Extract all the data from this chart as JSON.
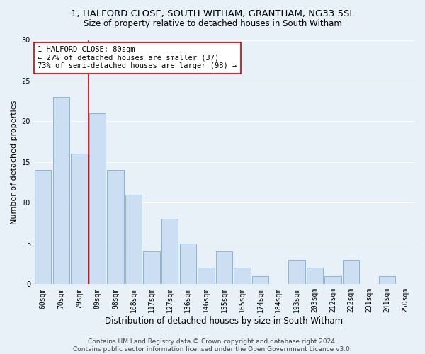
{
  "title": "1, HALFORD CLOSE, SOUTH WITHAM, GRANTHAM, NG33 5SL",
  "subtitle": "Size of property relative to detached houses in South Witham",
  "xlabel": "Distribution of detached houses by size in South Witham",
  "ylabel": "Number of detached properties",
  "footer_line1": "Contains HM Land Registry data © Crown copyright and database right 2024.",
  "footer_line2": "Contains public sector information licensed under the Open Government Licence v3.0.",
  "categories": [
    "60sqm",
    "70sqm",
    "79sqm",
    "89sqm",
    "98sqm",
    "108sqm",
    "117sqm",
    "127sqm",
    "136sqm",
    "146sqm",
    "155sqm",
    "165sqm",
    "174sqm",
    "184sqm",
    "193sqm",
    "203sqm",
    "212sqm",
    "222sqm",
    "231sqm",
    "241sqm",
    "250sqm"
  ],
  "values": [
    14,
    23,
    16,
    21,
    14,
    11,
    4,
    8,
    5,
    2,
    4,
    2,
    1,
    0,
    3,
    2,
    1,
    3,
    0,
    1,
    0
  ],
  "bar_color": "#ccdff2",
  "bar_edge_color": "#8ab4d8",
  "vline_x_index": 2,
  "vline_color": "#cc0000",
  "annotation_text": "1 HALFORD CLOSE: 80sqm\n← 27% of detached houses are smaller (37)\n73% of semi-detached houses are larger (98) →",
  "annotation_box_facecolor": "#ffffff",
  "annotation_box_edgecolor": "#cc0000",
  "ylim": [
    0,
    30
  ],
  "yticks": [
    0,
    5,
    10,
    15,
    20,
    25,
    30
  ],
  "background_color": "#e8f0f8",
  "grid_color": "#ffffff",
  "title_fontsize": 9.5,
  "subtitle_fontsize": 8.5,
  "ylabel_fontsize": 8,
  "xlabel_fontsize": 8.5,
  "tick_fontsize": 7,
  "annotation_fontsize": 7.5,
  "footer_fontsize": 6.5
}
